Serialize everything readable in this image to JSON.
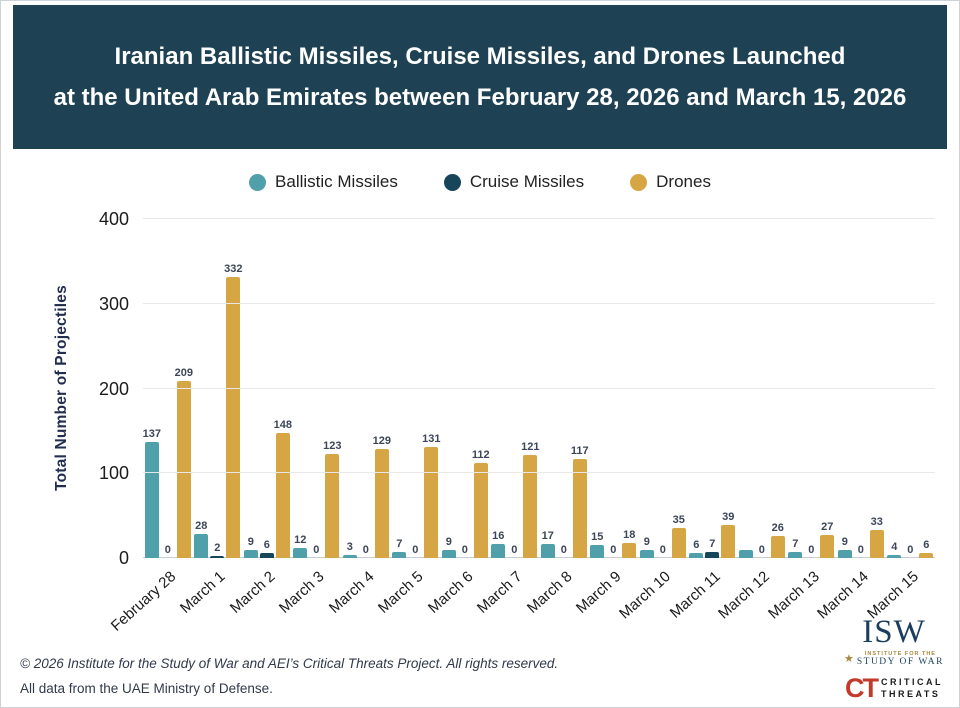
{
  "header": {
    "title_line1": "Iranian Ballistic Missiles, Cruise Missiles, and Drones Launched",
    "title_line2": "at the United Arab Emirates between February 28, 2026 and March 15, 2026",
    "bg_color": "#1E4254"
  },
  "legend": {
    "items": [
      {
        "label": "Ballistic Missiles",
        "color": "#4FA0AB"
      },
      {
        "label": "Cruise Missiles",
        "color": "#17455A"
      },
      {
        "label": "Drones",
        "color": "#D7A644"
      }
    ]
  },
  "chart_data": {
    "type": "bar",
    "title": "Iranian Ballistic Missiles, Cruise Missiles, and Drones Launched at the United Arab Emirates between February 28, 2026 and March 15, 2026",
    "categories": [
      "February 28",
      "March 1",
      "March 2",
      "March 3",
      "March 4",
      "March 5",
      "March 6",
      "March 7",
      "March 8",
      "March 9",
      "March 10",
      "March 11",
      "March 12",
      "March 13",
      "March 14",
      "March 15"
    ],
    "series": [
      {
        "name": "Ballistic Missiles",
        "color": "#4FA0AB",
        "values": [
          137,
          28,
          9,
          12,
          3,
          7,
          9,
          16,
          17,
          15,
          9,
          6,
          10,
          7,
          9,
          4
        ],
        "labels": [
          "137",
          "28",
          "9",
          "12",
          "3",
          "7",
          "9",
          "16",
          "17",
          "15",
          "9",
          "6",
          "",
          "7",
          "9",
          "4"
        ]
      },
      {
        "name": "Cruise Missiles",
        "color": "#17455A",
        "values": [
          0,
          2,
          6,
          0,
          0,
          0,
          0,
          0,
          0,
          0,
          0,
          7,
          0,
          0,
          0,
          0
        ],
        "labels": [
          "0",
          "2",
          "6",
          "0",
          "0",
          "0",
          "0",
          "0",
          "0",
          "0",
          "0",
          "7",
          "0",
          "0",
          "0",
          "0"
        ]
      },
      {
        "name": "Drones",
        "color": "#D7A644",
        "values": [
          209,
          332,
          148,
          123,
          129,
          131,
          112,
          121,
          117,
          18,
          35,
          39,
          26,
          27,
          33,
          6
        ],
        "labels": [
          "209",
          "332",
          "148",
          "123",
          "129",
          "131",
          "112",
          "121",
          "117",
          "18",
          "35",
          "39",
          "26",
          "27",
          "33",
          "6"
        ]
      }
    ],
    "xlabel": "",
    "ylabel": "Total Number of Projectiles",
    "yticks": [
      0,
      100,
      200,
      300,
      400
    ],
    "ytick_labels": [
      "0",
      "100",
      "200",
      "300",
      "400"
    ],
    "ylim": [
      0,
      400
    ],
    "grid": true,
    "legend_position": "top",
    "label_color": "#3C4658"
  },
  "footer": {
    "line1": "© 2026 Institute for the Study of War and AEI’s Critical Threats Project. All rights reserved.",
    "line2": "All data from the UAE Ministry of Defense."
  },
  "logos": {
    "isw": {
      "title": "ISW",
      "sub1": "INSTITUTE FOR THE",
      "sub2": "STUDY OF WAR",
      "star": "★",
      "color": "#1C3E5E",
      "gold": "#A9873C"
    },
    "ct": {
      "abbr": "CT",
      "line1": "CRITICAL",
      "line2": "THREATS",
      "red": "#C23A2B"
    }
  }
}
